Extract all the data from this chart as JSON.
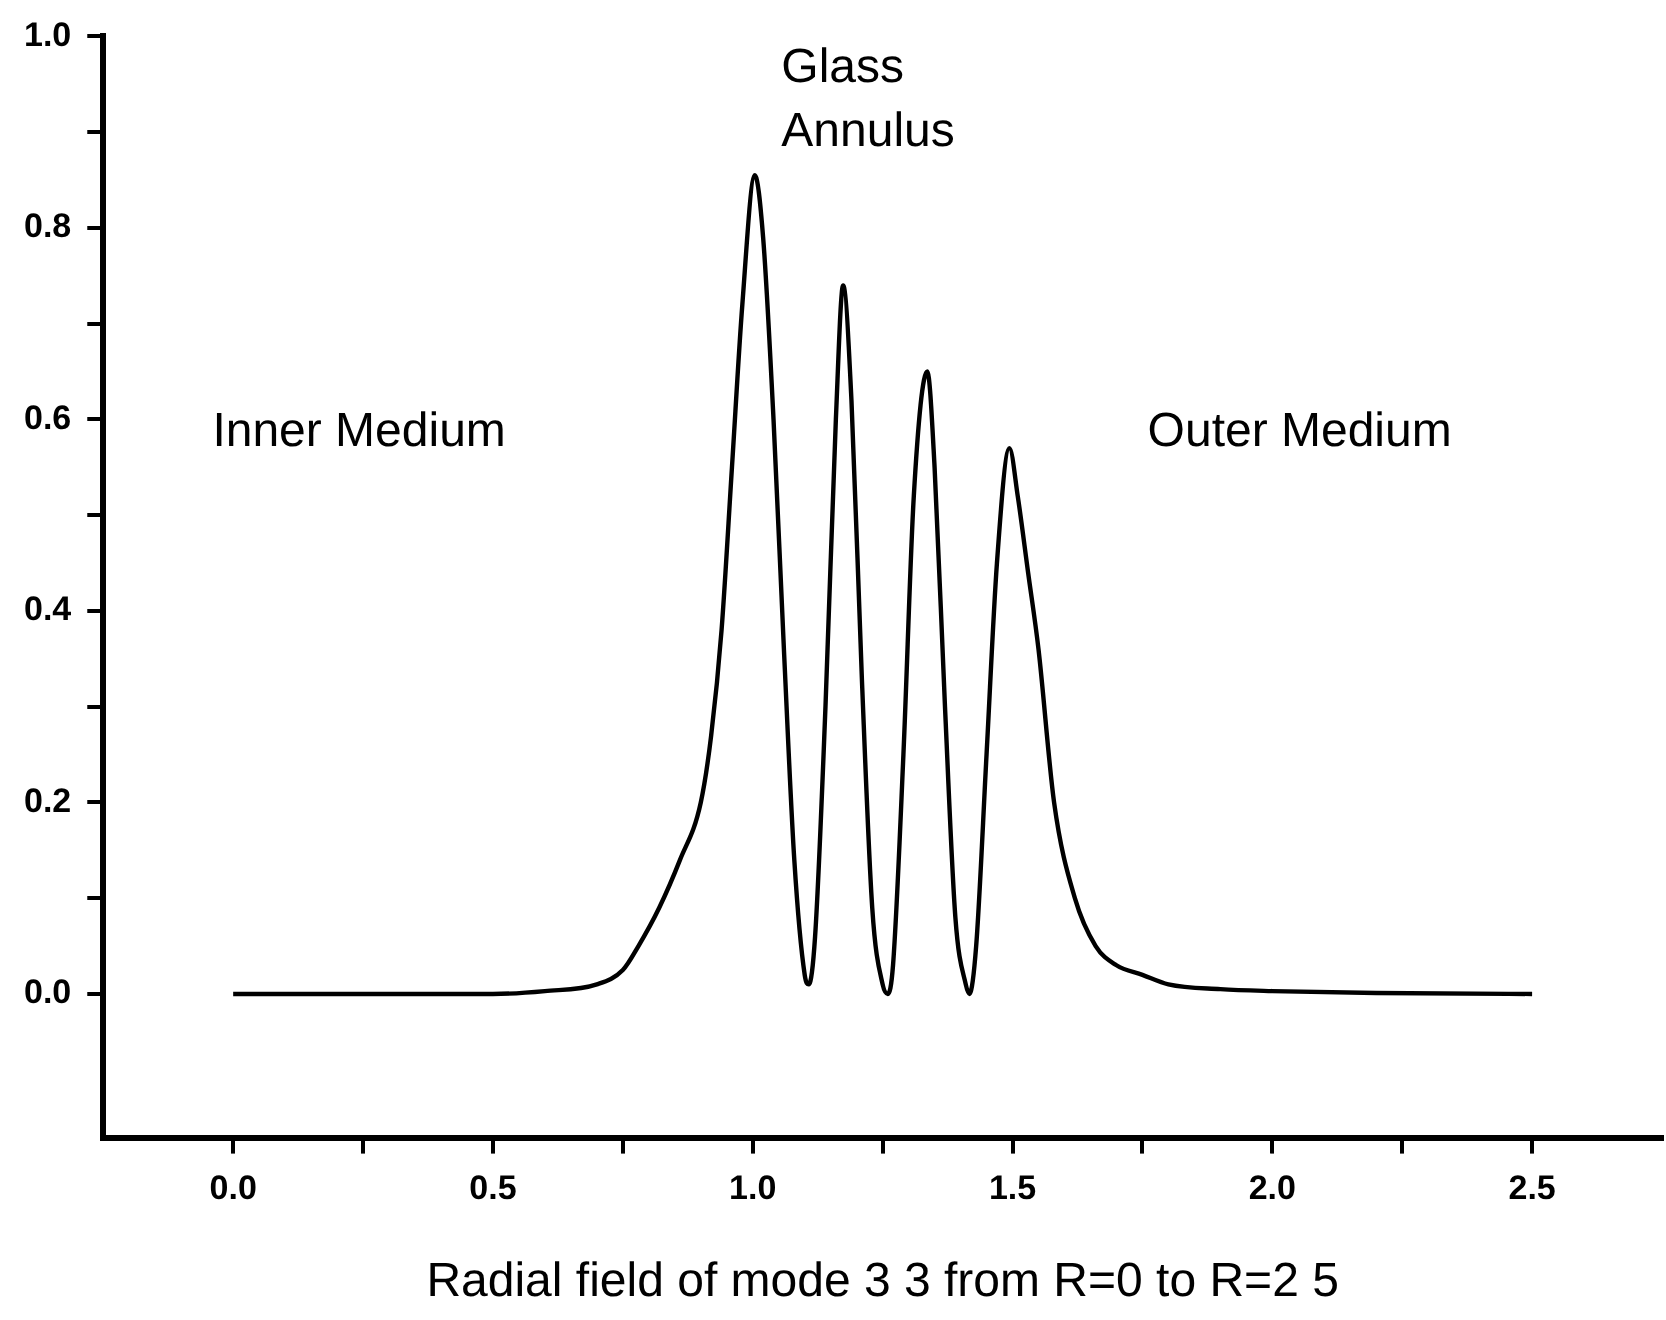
{
  "chart_data": {
    "type": "line",
    "xlabel": "Radial field of mode 3 3 from R=0 to R=2 5",
    "annotations": [
      "Glass\nAnnulus",
      "Inner Medium",
      "Outer Medium"
    ],
    "series": [
      {
        "color": "#000000",
        "x": [
          0,
          0.2,
          0.4,
          0.5,
          0.6,
          0.7,
          0.75,
          0.78,
          0.82,
          0.86,
          0.9,
          0.92,
          0.94,
          0.96,
          0.98,
          1.004,
          1.02,
          1.04,
          1.06,
          1.08,
          1.1,
          1.108,
          1.12,
          1.14,
          1.16,
          1.174,
          1.19,
          1.21,
          1.23,
          1.25,
          1.26,
          1.27,
          1.29,
          1.31,
          1.336,
          1.35,
          1.37,
          1.39,
          1.41,
          1.417,
          1.43,
          1.45,
          1.47,
          1.494,
          1.51,
          1.53,
          1.55,
          1.58,
          1.62,
          1.66,
          1.7,
          1.75,
          1.8,
          1.9,
          2.0,
          2.2,
          2.5
        ],
        "values": [
          0,
          0,
          0,
          0,
          0.003,
          0.01,
          0.025,
          0.05,
          0.09,
          0.14,
          0.2,
          0.27,
          0.38,
          0.55,
          0.72,
          0.855,
          0.79,
          0.6,
          0.36,
          0.14,
          0.02,
          0.01,
          0.06,
          0.3,
          0.6,
          0.74,
          0.62,
          0.33,
          0.09,
          0.01,
          0,
          0.03,
          0.25,
          0.52,
          0.65,
          0.55,
          0.3,
          0.08,
          0.01,
          0,
          0.05,
          0.25,
          0.45,
          0.57,
          0.52,
          0.44,
          0.36,
          0.2,
          0.1,
          0.05,
          0.03,
          0.02,
          0.01,
          0.005,
          0.003,
          0.001,
          0
        ]
      }
    ],
    "xlim": [
      -0.25,
      2.75
    ],
    "ylim": [
      -0.15,
      1.0
    ],
    "xticks": [
      {
        "value": 0,
        "label": "0.0"
      },
      {
        "value": 0.25,
        "label": null
      },
      {
        "value": 0.5,
        "label": "0.5"
      },
      {
        "value": 0.75,
        "label": null
      },
      {
        "value": 1,
        "label": "1.0"
      },
      {
        "value": 1.25,
        "label": null
      },
      {
        "value": 1.5,
        "label": "1.5"
      },
      {
        "value": 1.75,
        "label": null
      },
      {
        "value": 2,
        "label": "2.0"
      },
      {
        "value": 2.25,
        "label": null
      },
      {
        "value": 2.5,
        "label": "2.5"
      }
    ],
    "yticks": [
      {
        "value": 0,
        "label": "0.0"
      },
      {
        "value": 0.1,
        "label": null
      },
      {
        "value": 0.2,
        "label": "0.2"
      },
      {
        "value": 0.3,
        "label": null
      },
      {
        "value": 0.4,
        "label": "0.4"
      },
      {
        "value": 0.5,
        "label": null
      },
      {
        "value": 0.6,
        "label": "0.6"
      },
      {
        "value": 0.7,
        "label": null
      },
      {
        "value": 0.8,
        "label": "0.8"
      },
      {
        "value": 0.9,
        "label": null
      },
      {
        "value": 1.0,
        "label": "1.0"
      }
    ],
    "grid": false,
    "legend": false,
    "marker": "none",
    "line_style": "solid"
  }
}
